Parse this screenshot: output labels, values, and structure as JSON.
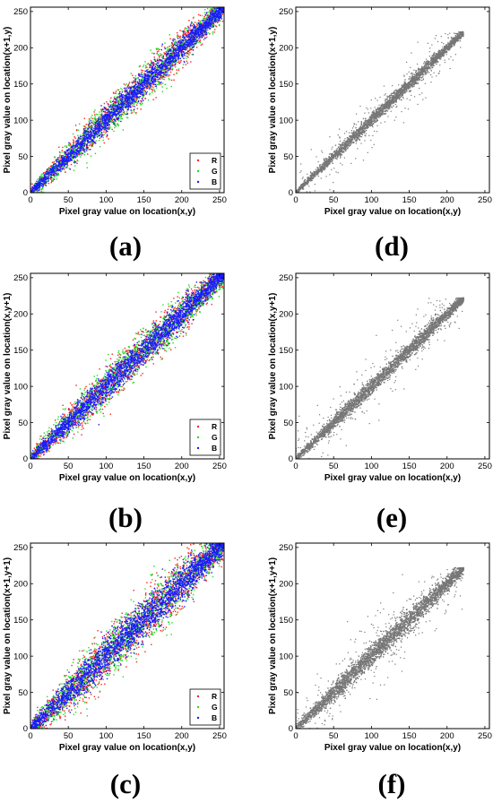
{
  "chart_data": [
    {
      "id": "a",
      "type": "scatter",
      "panel_label": "(a)",
      "xlabel": "Pixel gray value on location(x,y)",
      "ylabel": "Pixel gray value on location(x+1,y)",
      "xlim": [
        0,
        256
      ],
      "ylim": [
        0,
        256
      ],
      "xticks": [
        0,
        50,
        100,
        150,
        200,
        250
      ],
      "yticks": [
        0,
        50,
        100,
        150,
        200,
        250
      ],
      "legend": {
        "placement": "bottom-right",
        "entries": [
          "R",
          "G",
          "B"
        ]
      },
      "series": [
        {
          "name": "R",
          "color": "#ff2020",
          "points": 1400,
          "spread": 12,
          "max": 255
        },
        {
          "name": "G",
          "color": "#20dd20",
          "points": 1400,
          "spread": 12,
          "max": 255
        },
        {
          "name": "B",
          "color": "#1a1aff",
          "points": 2400,
          "spread": 8,
          "max": 255
        }
      ]
    },
    {
      "id": "b",
      "type": "scatter",
      "panel_label": "(b)",
      "xlabel": "Pixel gray value on location(x,y)",
      "ylabel": "Pixel gray value on location(x,y+1)",
      "xlim": [
        0,
        256
      ],
      "ylim": [
        0,
        256
      ],
      "xticks": [
        0,
        50,
        100,
        150,
        200,
        250
      ],
      "yticks": [
        0,
        50,
        100,
        150,
        200,
        250
      ],
      "legend": {
        "placement": "bottom-right",
        "entries": [
          "R",
          "G",
          "B"
        ]
      },
      "series": [
        {
          "name": "R",
          "color": "#ff2020",
          "points": 1400,
          "spread": 13,
          "max": 255
        },
        {
          "name": "G",
          "color": "#20dd20",
          "points": 1400,
          "spread": 13,
          "max": 255
        },
        {
          "name": "B",
          "color": "#1a1aff",
          "points": 2400,
          "spread": 9,
          "max": 255
        }
      ]
    },
    {
      "id": "c",
      "type": "scatter",
      "panel_label": "(c)",
      "xlabel": "Pixel gray value on location(x,y)",
      "ylabel": "Pixel gray value on location(x+1,y+1)",
      "xlim": [
        0,
        256
      ],
      "ylim": [
        0,
        256
      ],
      "xticks": [
        0,
        50,
        100,
        150,
        200,
        250
      ],
      "yticks": [
        0,
        50,
        100,
        150,
        200,
        250
      ],
      "legend": {
        "placement": "bottom-right",
        "entries": [
          "R",
          "G",
          "B"
        ]
      },
      "series": [
        {
          "name": "R",
          "color": "#ff2020",
          "points": 1500,
          "spread": 17,
          "max": 255
        },
        {
          "name": "G",
          "color": "#20dd20",
          "points": 1500,
          "spread": 17,
          "max": 255
        },
        {
          "name": "B",
          "color": "#1a1aff",
          "points": 2600,
          "spread": 12,
          "max": 255
        }
      ]
    },
    {
      "id": "d",
      "type": "scatter",
      "panel_label": "(d)",
      "xlabel": "Pixel gray value on location(x,y)",
      "ylabel": "Pixel gray value on location(x+1,y)",
      "xlim": [
        0,
        256
      ],
      "ylim": [
        0,
        256
      ],
      "xticks": [
        0,
        50,
        100,
        150,
        200,
        250
      ],
      "yticks": [
        0,
        50,
        100,
        150,
        200,
        250
      ],
      "series": [
        {
          "color": "#777777",
          "points": 2600,
          "spread": 4,
          "max": 222,
          "outliers": 300,
          "outlier_spread": 18
        }
      ]
    },
    {
      "id": "e",
      "type": "scatter",
      "panel_label": "(e)",
      "xlabel": "Pixel gray value on location(x,y)",
      "ylabel": "Pixel gray value on location(x,y+1)",
      "xlim": [
        0,
        256
      ],
      "ylim": [
        0,
        256
      ],
      "xticks": [
        0,
        50,
        100,
        150,
        200,
        250
      ],
      "yticks": [
        0,
        50,
        100,
        150,
        200,
        250
      ],
      "series": [
        {
          "color": "#777777",
          "points": 2600,
          "spread": 5,
          "max": 222,
          "outliers": 320,
          "outlier_spread": 20
        }
      ]
    },
    {
      "id": "f",
      "type": "scatter",
      "panel_label": "(f)",
      "xlabel": "Pixel gray value on location(x,y)",
      "ylabel": "Pixel gray value on location(x+1,y+1)",
      "xlim": [
        0,
        256
      ],
      "ylim": [
        0,
        256
      ],
      "xticks": [
        0,
        50,
        100,
        150,
        200,
        250
      ],
      "yticks": [
        0,
        50,
        100,
        150,
        200,
        250
      ],
      "series": [
        {
          "color": "#777777",
          "points": 2800,
          "spread": 7,
          "max": 222,
          "outliers": 420,
          "outlier_spread": 24
        }
      ]
    }
  ]
}
